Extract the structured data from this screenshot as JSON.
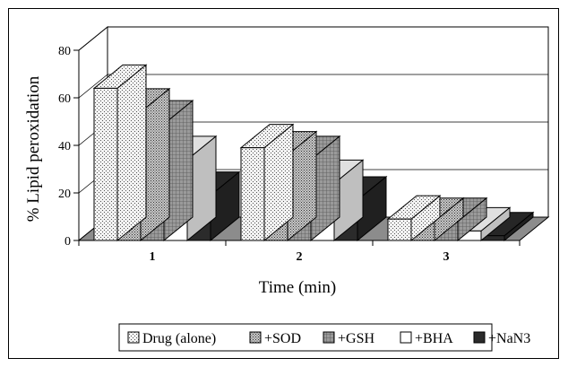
{
  "chart_data": {
    "type": "bar",
    "categories": [
      "1",
      "2",
      "3"
    ],
    "xlabel": "Time (min)",
    "ylabel": "% Lipid peroxidation",
    "yticks": [
      0,
      20,
      40,
      60,
      80
    ],
    "ylim": [
      0,
      80
    ],
    "grid": true,
    "legend_position": "bottom",
    "series": [
      {
        "name": "Drug (alone)",
        "values": [
          64,
          39,
          9
        ],
        "pattern": "dots-fine",
        "color": "#e6e6e6"
      },
      {
        "name": "+SOD",
        "values": [
          54,
          36,
          8
        ],
        "pattern": "dots-dense",
        "color": "#bdbdbd"
      },
      {
        "name": "+GSH",
        "values": [
          49,
          34,
          8
        ],
        "pattern": "grid",
        "color": "#8f8f8f"
      },
      {
        "name": "+BHA",
        "values": [
          34,
          24,
          4
        ],
        "pattern": "solid",
        "color": "#ffffff"
      },
      {
        "name": "+NaN3",
        "values": [
          19,
          17,
          2
        ],
        "pattern": "solid",
        "color": "#2b2b2b"
      }
    ]
  }
}
